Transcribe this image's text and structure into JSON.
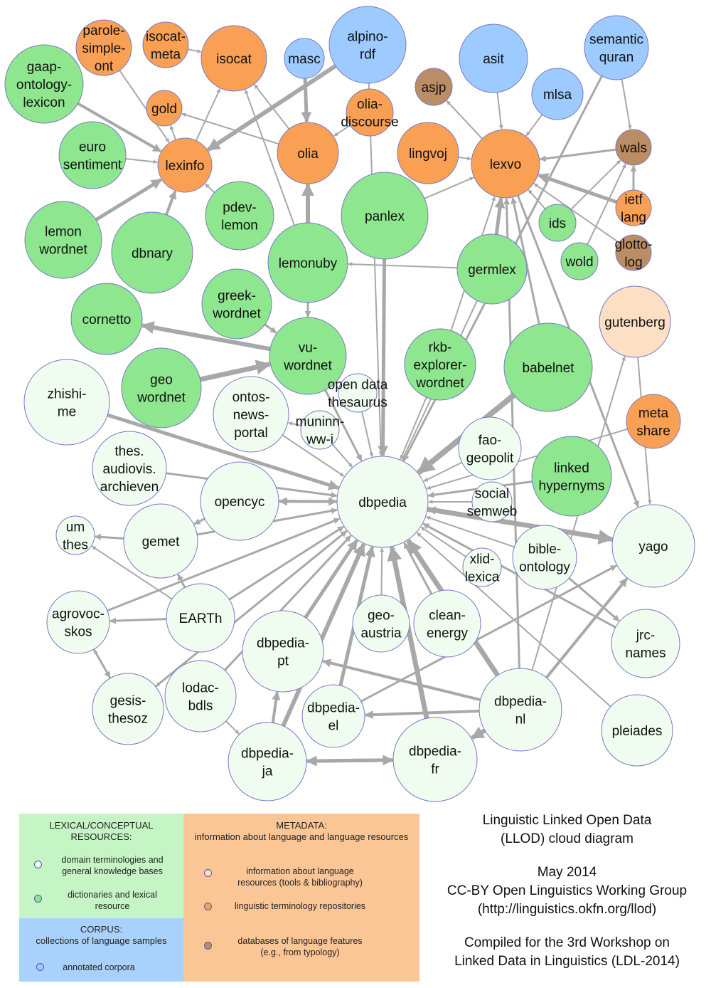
{
  "nodes": [
    {
      "id": "gaap",
      "lines": [
        "gaap-",
        "ontology-",
        "lexicon"
      ],
      "color": "green"
    },
    {
      "id": "parole",
      "lines": [
        "parole-",
        "simple-",
        "ont"
      ],
      "color": "orange"
    },
    {
      "id": "isocatmeta",
      "lines": [
        "isocat-",
        "meta"
      ],
      "color": "orange"
    },
    {
      "id": "isocat",
      "lines": [
        "isocat"
      ],
      "color": "orange"
    },
    {
      "id": "masc",
      "lines": [
        "masc"
      ],
      "color": "blue"
    },
    {
      "id": "alpino",
      "lines": [
        "alpino-",
        "rdf"
      ],
      "color": "blue"
    },
    {
      "id": "asit",
      "lines": [
        "asit"
      ],
      "color": "blue"
    },
    {
      "id": "semquran",
      "lines": [
        "semantic",
        "quran"
      ],
      "color": "blue"
    },
    {
      "id": "asjp",
      "lines": [
        "asjp"
      ],
      "color": "brown"
    },
    {
      "id": "mlsa",
      "lines": [
        "mlsa"
      ],
      "color": "blue"
    },
    {
      "id": "gold",
      "lines": [
        "gold"
      ],
      "color": "orange"
    },
    {
      "id": "oliadisc",
      "lines": [
        "olia-",
        "discourse"
      ],
      "color": "orange"
    },
    {
      "id": "euro",
      "lines": [
        "euro",
        "sentiment"
      ],
      "color": "green"
    },
    {
      "id": "lexinfo",
      "lines": [
        "lexinfo"
      ],
      "color": "orange"
    },
    {
      "id": "olia",
      "lines": [
        "olia"
      ],
      "color": "orange"
    },
    {
      "id": "lingvoj",
      "lines": [
        "lingvoj"
      ],
      "color": "orange"
    },
    {
      "id": "lexvo",
      "lines": [
        "lexvo"
      ],
      "color": "orange"
    },
    {
      "id": "wals",
      "lines": [
        "wals"
      ],
      "color": "brown"
    },
    {
      "id": "ietf",
      "lines": [
        "ietf",
        "lang"
      ],
      "color": "orange"
    },
    {
      "id": "glotto",
      "lines": [
        "glotto-",
        "log"
      ],
      "color": "brown"
    },
    {
      "id": "lemonwn",
      "lines": [
        "lemon",
        "wordnet"
      ],
      "color": "green"
    },
    {
      "id": "dbnary",
      "lines": [
        "dbnary"
      ],
      "color": "green"
    },
    {
      "id": "pdev",
      "lines": [
        "pdev-",
        "lemon"
      ],
      "color": "green"
    },
    {
      "id": "panlex",
      "lines": [
        "panlex"
      ],
      "color": "green"
    },
    {
      "id": "ids",
      "lines": [
        "ids"
      ],
      "color": "green"
    },
    {
      "id": "lemonuby",
      "lines": [
        "lemonuby"
      ],
      "color": "green"
    },
    {
      "id": "germlex",
      "lines": [
        "germlex"
      ],
      "color": "green"
    },
    {
      "id": "wold",
      "lines": [
        "wold"
      ],
      "color": "green"
    },
    {
      "id": "gutenberg",
      "lines": [
        "gutenberg"
      ],
      "color": "peach"
    },
    {
      "id": "cornetto",
      "lines": [
        "cornetto"
      ],
      "color": "green"
    },
    {
      "id": "greekwn",
      "lines": [
        "greek-",
        "wordnet"
      ],
      "color": "green"
    },
    {
      "id": "vuwn",
      "lines": [
        "vu-",
        "wordnet"
      ],
      "color": "green"
    },
    {
      "id": "rkb",
      "lines": [
        "rkb-",
        "explorer-",
        "wordnet"
      ],
      "color": "green"
    },
    {
      "id": "babelnet",
      "lines": [
        "babelnet"
      ],
      "color": "green"
    },
    {
      "id": "geown",
      "lines": [
        "geo",
        "wordnet"
      ],
      "color": "green"
    },
    {
      "id": "zhishi",
      "lines": [
        "zhishi-",
        "me"
      ],
      "color": "pale"
    },
    {
      "id": "ontos",
      "lines": [
        "ontos-",
        "news-",
        "portal"
      ],
      "color": "pale"
    },
    {
      "id": "opendata",
      "lines": [
        "open data",
        "thesaurus"
      ],
      "color": "pale"
    },
    {
      "id": "muninn",
      "lines": [
        "muninn-",
        "ww-i"
      ],
      "color": "pale"
    },
    {
      "id": "metashare",
      "lines": [
        "meta",
        "share"
      ],
      "color": "orange"
    },
    {
      "id": "fao",
      "lines": [
        "fao-",
        "geopolit"
      ],
      "color": "pale"
    },
    {
      "id": "thes",
      "lines": [
        "thes.",
        "audiovis.",
        "archieven"
      ],
      "color": "pale"
    },
    {
      "id": "linkedhyp",
      "lines": [
        "linked",
        "hypernyms"
      ],
      "color": "green"
    },
    {
      "id": "opencyc",
      "lines": [
        "opencyc"
      ],
      "color": "pale"
    },
    {
      "id": "dbpedia",
      "lines": [
        "dbpedia"
      ],
      "color": "pale"
    },
    {
      "id": "social",
      "lines": [
        "social",
        "semweb"
      ],
      "color": "pale"
    },
    {
      "id": "umthes",
      "lines": [
        "um",
        "thes"
      ],
      "color": "pale"
    },
    {
      "id": "gemet",
      "lines": [
        "gemet"
      ],
      "color": "pale"
    },
    {
      "id": "yago",
      "lines": [
        "yago"
      ],
      "color": "pale"
    },
    {
      "id": "bible",
      "lines": [
        "bible-",
        "ontology"
      ],
      "color": "pale"
    },
    {
      "id": "xlid",
      "lines": [
        "xlid-",
        "lexica"
      ],
      "color": "pale"
    },
    {
      "id": "agrovoc",
      "lines": [
        "agrovoc-",
        "skos"
      ],
      "color": "pale"
    },
    {
      "id": "earth",
      "lines": [
        "EARTh"
      ],
      "color": "pale"
    },
    {
      "id": "geoaustria",
      "lines": [
        "geo-",
        "austria"
      ],
      "color": "pale"
    },
    {
      "id": "clean",
      "lines": [
        "clean-",
        "energy"
      ],
      "color": "pale"
    },
    {
      "id": "dbpt",
      "lines": [
        "dbpedia-",
        "pt"
      ],
      "color": "pale"
    },
    {
      "id": "jrc",
      "lines": [
        "jrc-",
        "names"
      ],
      "color": "pale"
    },
    {
      "id": "gesis",
      "lines": [
        "gesis-",
        "thesoz"
      ],
      "color": "pale"
    },
    {
      "id": "lodac",
      "lines": [
        "lodac-",
        "bdls"
      ],
      "color": "pale"
    },
    {
      "id": "dbel",
      "lines": [
        "dbpedia-",
        "el"
      ],
      "color": "pale"
    },
    {
      "id": "dbnl",
      "lines": [
        "dbpedia-",
        "nl"
      ],
      "color": "pale"
    },
    {
      "id": "pleiades",
      "lines": [
        "pleiades"
      ],
      "color": "pale"
    },
    {
      "id": "dbja",
      "lines": [
        "dbpedia-",
        "ja"
      ],
      "color": "pale"
    },
    {
      "id": "dbfr",
      "lines": [
        "dbpedia-",
        "fr"
      ],
      "color": "pale"
    }
  ],
  "colors": {
    "green": "#8ee68e",
    "orange": "#f9a055",
    "blue": "#9dcaff",
    "brown": "#bb8d64",
    "peach": "#fde0c4",
    "pale": "#f0fcf0",
    "stroke": "#7878c8",
    "edge": "#a8a8a8",
    "legend_green": "#c5f5c5",
    "legend_orange": "#fbc696",
    "legend_blue": "#a8d2fc"
  },
  "legend": {
    "lexical": {
      "title": [
        "LEXICAL/CONCEPTUAL",
        "RESOURCES:"
      ],
      "items": [
        {
          "lines": [
            "domain terminologies and",
            "general knowledge bases"
          ],
          "color": "pale"
        },
        {
          "lines": [
            "dictionaries and lexical",
            "resource"
          ],
          "color": "green"
        }
      ]
    },
    "metadata": {
      "title": [
        "METADATA:",
        "information about language and language resources"
      ],
      "items": [
        {
          "lines": [
            "information about language",
            "resources (tools & bibliography)"
          ],
          "color": "peach"
        },
        {
          "lines": [
            "linguistic terminology repositories"
          ],
          "color": "orange"
        },
        {
          "lines": [
            "databases of language features",
            "(e.g., from typology)"
          ],
          "color": "brown"
        }
      ]
    },
    "corpus": {
      "title": [
        "CORPUS:",
        "collections of language samples"
      ],
      "items": [
        {
          "lines": [
            "annotated corpora"
          ],
          "color": "blue"
        }
      ]
    }
  },
  "credits": {
    "title": [
      "Linguistic Linked Open Data",
      "(LLOD) cloud diagram"
    ],
    "date": "May 2014",
    "license": "CC-BY Open Linguistics Working Group",
    "url": "(http://linguistics.okfn.org/llod)",
    "compiled": [
      "Compiled for the 3rd Workshop on",
      "Linked Data in Linguistics (LDL-2014)"
    ]
  }
}
